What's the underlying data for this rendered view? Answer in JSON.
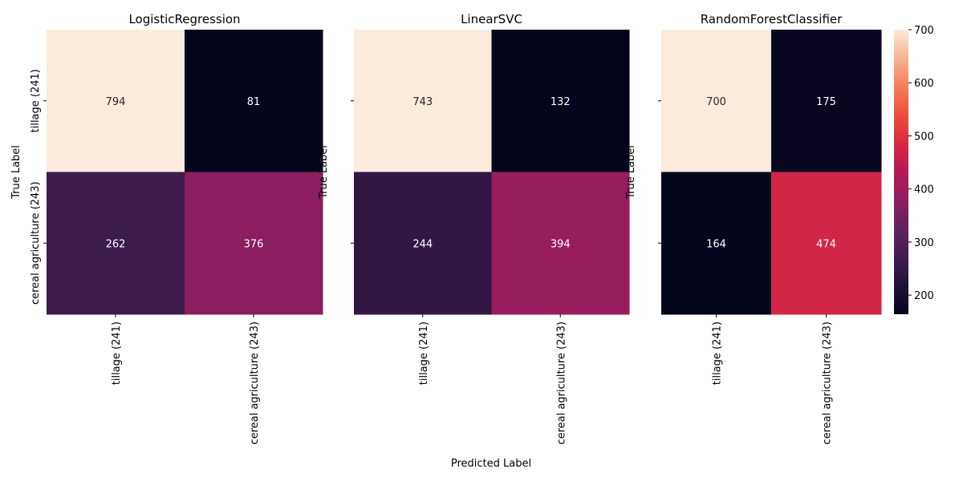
{
  "chart_data": {
    "type": "heatmap",
    "xlabel": "Predicted Label",
    "ylabel": "True Label",
    "x_tick_labels": [
      "tillage (241)",
      "cereal agriculture (243)"
    ],
    "y_tick_labels": [
      "tillage (241)",
      "cereal agriculture (243)"
    ],
    "panels": [
      {
        "title": "LogisticRegression",
        "values": [
          [
            794,
            81
          ],
          [
            262,
            376
          ]
        ]
      },
      {
        "title": "LinearSVC",
        "values": [
          [
            743,
            132
          ],
          [
            244,
            394
          ]
        ]
      },
      {
        "title": "RandomForestClassifier",
        "values": [
          [
            700,
            175
          ],
          [
            164,
            474
          ]
        ]
      }
    ],
    "colorbar": {
      "range": [
        164,
        700
      ],
      "ticks": [
        200,
        300,
        400,
        500,
        600,
        700
      ],
      "colormap": "rocket"
    }
  }
}
